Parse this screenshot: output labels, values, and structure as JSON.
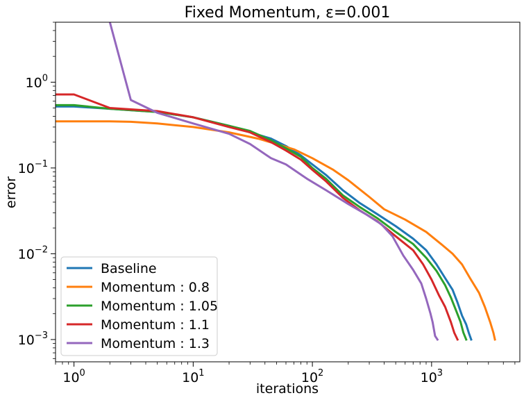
{
  "chart_data": {
    "type": "line",
    "title": "Fixed Momentum, ε=0.001",
    "xlabel": "iterations",
    "ylabel": "error",
    "xscale": "log",
    "yscale": "log",
    "xlim": [
      0.7,
      5500
    ],
    "ylim": [
      0.00055,
      5.0
    ],
    "x_ticks": [
      {
        "value": 1,
        "base": "10",
        "exp": "0"
      },
      {
        "value": 10,
        "base": "10",
        "exp": "1"
      },
      {
        "value": 100,
        "base": "10",
        "exp": "2"
      },
      {
        "value": 1000,
        "base": "10",
        "exp": "3"
      }
    ],
    "y_ticks": [
      {
        "value": 0.001,
        "base": "10",
        "exp": "−3"
      },
      {
        "value": 0.01,
        "base": "10",
        "exp": "−2"
      },
      {
        "value": 0.1,
        "base": "10",
        "exp": "−1"
      },
      {
        "value": 1,
        "base": "10",
        "exp": "0"
      }
    ],
    "grid": false,
    "legend_position": "lower-left",
    "series": [
      {
        "name": "Baseline",
        "color": "#1f77b4",
        "points": [
          [
            0.7,
            0.52
          ],
          [
            1,
            0.52
          ],
          [
            2,
            0.49
          ],
          [
            5,
            0.45
          ],
          [
            10,
            0.39
          ],
          [
            20,
            0.31
          ],
          [
            30,
            0.26
          ],
          [
            45,
            0.22
          ],
          [
            60,
            0.18
          ],
          [
            80,
            0.14
          ],
          [
            100,
            0.11
          ],
          [
            130,
            0.083
          ],
          [
            180,
            0.055
          ],
          [
            250,
            0.039
          ],
          [
            350,
            0.029
          ],
          [
            500,
            0.021
          ],
          [
            700,
            0.015
          ],
          [
            900,
            0.011
          ],
          [
            1100,
            0.0075
          ],
          [
            1300,
            0.0052
          ],
          [
            1500,
            0.0038
          ],
          [
            1650,
            0.0027
          ],
          [
            1800,
            0.0019
          ],
          [
            1950,
            0.0015
          ],
          [
            2050,
            0.0012
          ],
          [
            2150,
            0.001
          ]
        ]
      },
      {
        "name": "Momentum : 0.8",
        "color": "#ff7f0e",
        "points": [
          [
            0.7,
            0.35
          ],
          [
            1,
            0.35
          ],
          [
            2,
            0.35
          ],
          [
            3,
            0.345
          ],
          [
            5,
            0.33
          ],
          [
            10,
            0.3
          ],
          [
            20,
            0.26
          ],
          [
            35,
            0.22
          ],
          [
            50,
            0.19
          ],
          [
            70,
            0.165
          ],
          [
            100,
            0.13
          ],
          [
            150,
            0.095
          ],
          [
            200,
            0.072
          ],
          [
            300,
            0.046
          ],
          [
            400,
            0.033
          ],
          [
            600,
            0.025
          ],
          [
            900,
            0.018
          ],
          [
            1200,
            0.013
          ],
          [
            1500,
            0.01
          ],
          [
            1800,
            0.0075
          ],
          [
            2100,
            0.0052
          ],
          [
            2500,
            0.0035
          ],
          [
            2800,
            0.0024
          ],
          [
            3100,
            0.0016
          ],
          [
            3300,
            0.0012
          ],
          [
            3400,
            0.001
          ]
        ]
      },
      {
        "name": "Momentum : 1.05",
        "color": "#2ca02c",
        "points": [
          [
            0.7,
            0.54
          ],
          [
            1,
            0.54
          ],
          [
            2,
            0.49
          ],
          [
            5,
            0.45
          ],
          [
            10,
            0.39
          ],
          [
            20,
            0.31
          ],
          [
            30,
            0.27
          ],
          [
            45,
            0.21
          ],
          [
            60,
            0.17
          ],
          [
            80,
            0.135
          ],
          [
            100,
            0.1
          ],
          [
            130,
            0.075
          ],
          [
            180,
            0.048
          ],
          [
            250,
            0.035
          ],
          [
            350,
            0.026
          ],
          [
            500,
            0.018
          ],
          [
            700,
            0.013
          ],
          [
            900,
            0.009
          ],
          [
            1100,
            0.0063
          ],
          [
            1300,
            0.0043
          ],
          [
            1450,
            0.0031
          ],
          [
            1600,
            0.0022
          ],
          [
            1750,
            0.0016
          ],
          [
            1850,
            0.0012
          ],
          [
            1950,
            0.001
          ]
        ]
      },
      {
        "name": "Momentum : 1.1",
        "color": "#d62728",
        "points": [
          [
            0.7,
            0.72
          ],
          [
            1,
            0.72
          ],
          [
            2,
            0.5
          ],
          [
            5,
            0.46
          ],
          [
            10,
            0.39
          ],
          [
            20,
            0.3
          ],
          [
            30,
            0.26
          ],
          [
            45,
            0.2
          ],
          [
            60,
            0.16
          ],
          [
            80,
            0.125
          ],
          [
            100,
            0.095
          ],
          [
            130,
            0.07
          ],
          [
            180,
            0.045
          ],
          [
            250,
            0.032
          ],
          [
            350,
            0.024
          ],
          [
            500,
            0.016
          ],
          [
            700,
            0.011
          ],
          [
            850,
            0.0075
          ],
          [
            1000,
            0.005
          ],
          [
            1150,
            0.0033
          ],
          [
            1300,
            0.0024
          ],
          [
            1450,
            0.0016
          ],
          [
            1550,
            0.0012
          ],
          [
            1650,
            0.001
          ]
        ]
      },
      {
        "name": "Momentum : 1.3",
        "color": "#9467bd",
        "points": [
          [
            2.0,
            5.0
          ],
          [
            3,
            0.62
          ],
          [
            5,
            0.44
          ],
          [
            10,
            0.33
          ],
          [
            20,
            0.25
          ],
          [
            30,
            0.19
          ],
          [
            45,
            0.13
          ],
          [
            60,
            0.11
          ],
          [
            90,
            0.075
          ],
          [
            130,
            0.055
          ],
          [
            200,
            0.038
          ],
          [
            280,
            0.029
          ],
          [
            380,
            0.022
          ],
          [
            470,
            0.016
          ],
          [
            580,
            0.0095
          ],
          [
            700,
            0.0065
          ],
          [
            820,
            0.0045
          ],
          [
            900,
            0.003
          ],
          [
            980,
            0.002
          ],
          [
            1020,
            0.0016
          ],
          [
            1070,
            0.0011
          ],
          [
            1120,
            0.001
          ]
        ]
      }
    ]
  }
}
